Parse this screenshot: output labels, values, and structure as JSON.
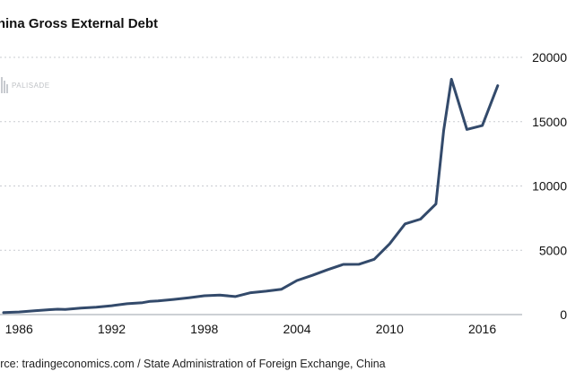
{
  "chart_data": {
    "type": "line",
    "title": "China Gross External Debt",
    "source": "Source: tradingeconomics.com / State Administration of Foreign Exchange, China",
    "watermark": "PALISADE",
    "xlabel": "",
    "ylabel": "",
    "xlim": [
      1985,
      2018
    ],
    "ylim": [
      0,
      20000
    ],
    "x_ticks": [
      {
        "value": 1986,
        "label": "1986"
      },
      {
        "value": 1992,
        "label": "1992"
      },
      {
        "value": 1998,
        "label": "1998"
      },
      {
        "value": 2004,
        "label": "2004"
      },
      {
        "value": 2010,
        "label": "2010"
      },
      {
        "value": 2016,
        "label": "2016"
      }
    ],
    "y_ticks": [
      {
        "value": 0,
        "label": "0"
      },
      {
        "value": 5000,
        "label": "5000"
      },
      {
        "value": 10000,
        "label": "10000"
      },
      {
        "value": 15000,
        "label": "15000"
      },
      {
        "value": 20000,
        "label": "20000"
      }
    ],
    "grid": true,
    "series": [
      {
        "name": "China Gross External Debt",
        "color": "#334a6b",
        "x": [
          1985,
          1986,
          1987,
          1988,
          1988.5,
          1989,
          1990,
          1991,
          1992,
          1993,
          1994,
          1994.5,
          1995,
          1996,
          1997,
          1998,
          1999,
          2000,
          2001,
          2002,
          2003,
          2004,
          2005,
          2006,
          2007,
          2008,
          2009,
          2010,
          2011,
          2012,
          2013,
          2013.5,
          2014,
          2015,
          2016,
          2017
        ],
        "values": [
          150,
          200,
          300,
          380,
          420,
          400,
          500,
          580,
          690,
          840,
          930,
          1030,
          1060,
          1180,
          1310,
          1460,
          1520,
          1400,
          1700,
          1820,
          1970,
          2650,
          3050,
          3500,
          3900,
          3910,
          4300,
          5500,
          7050,
          7420,
          8600,
          14300,
          18300,
          14400,
          14700,
          17800
        ]
      }
    ]
  }
}
